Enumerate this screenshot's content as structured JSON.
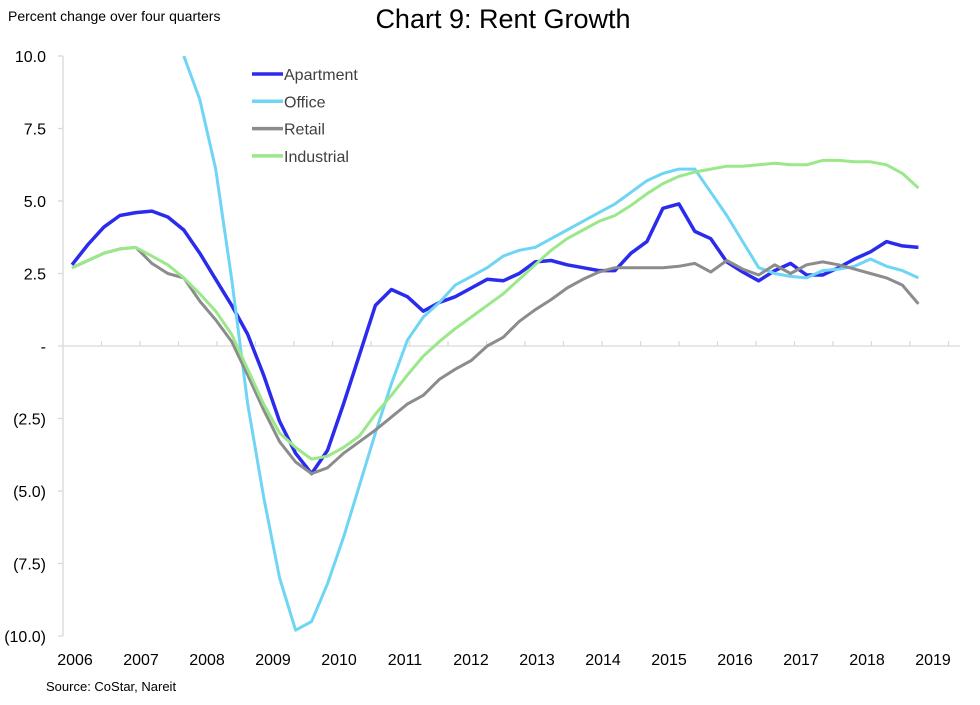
{
  "chart_data": {
    "type": "line",
    "title": "Chart 9: Rent Growth",
    "subtitle": "Percent change over four quarters",
    "source": "Source: CoStar, Nareit",
    "xlabel": "",
    "ylabel": "Percent change over four quarters",
    "ylim": [
      -10,
      10
    ],
    "yticks": [
      10,
      7.5,
      5,
      2.5,
      0,
      -2.5,
      -5,
      -7.5,
      -10
    ],
    "ytick_labels": [
      "10.0",
      "7.5",
      "5.0",
      "2.5",
      "-",
      "(2.5)",
      "(5.0)",
      "(7.5)",
      "(10.0)"
    ],
    "xtick_labels": [
      "2006",
      "2007",
      "2008",
      "2009",
      "2010",
      "2011",
      "2012",
      "2013",
      "2014",
      "2015",
      "2016",
      "2017",
      "2018",
      "2019"
    ],
    "x_start": "2006 Q1",
    "x_frequency": "quarterly",
    "grid": false,
    "legend_position": "top-left",
    "series": [
      {
        "name": "Apartment",
        "color": "#2b2bee",
        "values": [
          2.8,
          3.5,
          4.1,
          4.5,
          4.6,
          4.65,
          4.45,
          4.0,
          3.2,
          2.3,
          1.4,
          0.4,
          -1.0,
          -2.6,
          -3.7,
          -4.4,
          -3.6,
          -2.0,
          -0.3,
          1.4,
          1.95,
          1.7,
          1.2,
          1.5,
          1.7,
          2.0,
          2.3,
          2.25,
          2.5,
          2.9,
          2.95,
          2.8,
          2.7,
          2.6,
          2.6,
          3.2,
          3.6,
          4.75,
          4.9,
          3.95,
          3.7,
          2.9,
          2.55,
          2.25,
          2.6,
          2.85,
          2.45,
          2.45,
          2.7,
          3.0,
          3.25,
          3.6,
          3.45,
          3.4
        ]
      },
      {
        "name": "Office",
        "color": "#6fd5f5",
        "values": [
          null,
          null,
          null,
          null,
          null,
          null,
          null,
          10.0,
          8.5,
          6.1,
          2.3,
          -2.0,
          -5.2,
          -8.0,
          -9.8,
          -9.5,
          -8.2,
          -6.6,
          -4.8,
          -3.0,
          -1.3,
          0.2,
          1.0,
          1.5,
          2.1,
          2.4,
          2.7,
          3.1,
          3.3,
          3.4,
          3.7,
          4.0,
          4.3,
          4.6,
          4.9,
          5.3,
          5.7,
          5.95,
          6.1,
          6.1,
          5.3,
          4.5,
          3.6,
          2.7,
          2.5,
          2.4,
          2.35,
          2.6,
          2.65,
          2.75,
          3.0,
          2.75,
          2.6,
          2.35
        ]
      },
      {
        "name": "Retail",
        "color": "#8c8c8c",
        "values": [
          2.7,
          2.95,
          3.2,
          3.35,
          3.4,
          2.85,
          2.5,
          2.35,
          1.55,
          0.9,
          0.15,
          -1.0,
          -2.2,
          -3.3,
          -4.0,
          -4.4,
          -4.2,
          -3.7,
          -3.3,
          -2.9,
          -2.45,
          -2.0,
          -1.7,
          -1.15,
          -0.8,
          -0.5,
          -0.0,
          0.3,
          0.85,
          1.25,
          1.6,
          2.0,
          2.3,
          2.55,
          2.7,
          2.7,
          2.7,
          2.7,
          2.75,
          2.85,
          2.55,
          2.95,
          2.65,
          2.45,
          2.8,
          2.5,
          2.8,
          2.9,
          2.8,
          2.65,
          2.5,
          2.35,
          2.1,
          1.45
        ]
      },
      {
        "name": "Industrial",
        "color": "#9ae88a",
        "values": [
          2.7,
          2.95,
          3.2,
          3.35,
          3.4,
          3.1,
          2.8,
          2.35,
          1.8,
          1.2,
          0.4,
          -0.8,
          -2.0,
          -3.0,
          -3.5,
          -3.9,
          -3.8,
          -3.5,
          -3.1,
          -2.35,
          -1.7,
          -1.0,
          -0.35,
          0.15,
          0.6,
          1.0,
          1.4,
          1.8,
          2.3,
          2.8,
          3.3,
          3.7,
          4.0,
          4.3,
          4.5,
          4.85,
          5.25,
          5.6,
          5.85,
          6.0,
          6.1,
          6.2,
          6.2,
          6.25,
          6.3,
          6.25,
          6.25,
          6.4,
          6.4,
          6.35,
          6.35,
          6.25,
          5.95,
          5.45
        ]
      }
    ]
  }
}
